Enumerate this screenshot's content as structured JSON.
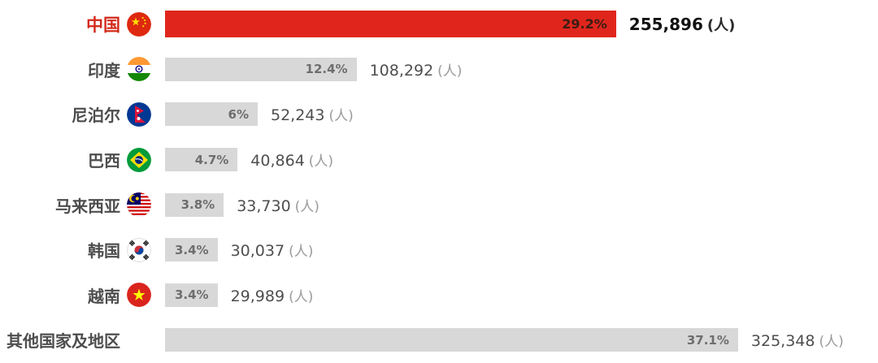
{
  "chart_data": {
    "type": "bar",
    "orientation": "horizontal",
    "title": "",
    "unit": "(人)",
    "legend": "none",
    "grid": false,
    "xlim": [
      0,
      40
    ],
    "highlight_color": "#e0261c",
    "bar_color": "#d8d8d8",
    "rows": [
      {
        "label": "中国",
        "flag": "cn",
        "percent": 29.2,
        "percent_label": "29.2%",
        "count": "255,896",
        "highlight": true
      },
      {
        "label": "印度",
        "flag": "in",
        "percent": 12.4,
        "percent_label": "12.4%",
        "count": "108,292",
        "highlight": false
      },
      {
        "label": "尼泊尔",
        "flag": "np",
        "percent": 6,
        "percent_label": "6%",
        "count": "52,243",
        "highlight": false
      },
      {
        "label": "巴西",
        "flag": "br",
        "percent": 4.7,
        "percent_label": "4.7%",
        "count": "40,864",
        "highlight": false
      },
      {
        "label": "马来西亚",
        "flag": "my",
        "percent": 3.8,
        "percent_label": "3.8%",
        "count": "33,730",
        "highlight": false
      },
      {
        "label": "韩国",
        "flag": "kr",
        "percent": 3.4,
        "percent_label": "3.4%",
        "count": "30,037",
        "highlight": false
      },
      {
        "label": "越南",
        "flag": "vn",
        "percent": 3.4,
        "percent_label": "3.4%",
        "count": "29,989",
        "highlight": false
      },
      {
        "label": "其他国家及地区",
        "flag": null,
        "percent": 37.1,
        "percent_label": "37.1%",
        "count": "325,348",
        "highlight": false
      }
    ]
  }
}
